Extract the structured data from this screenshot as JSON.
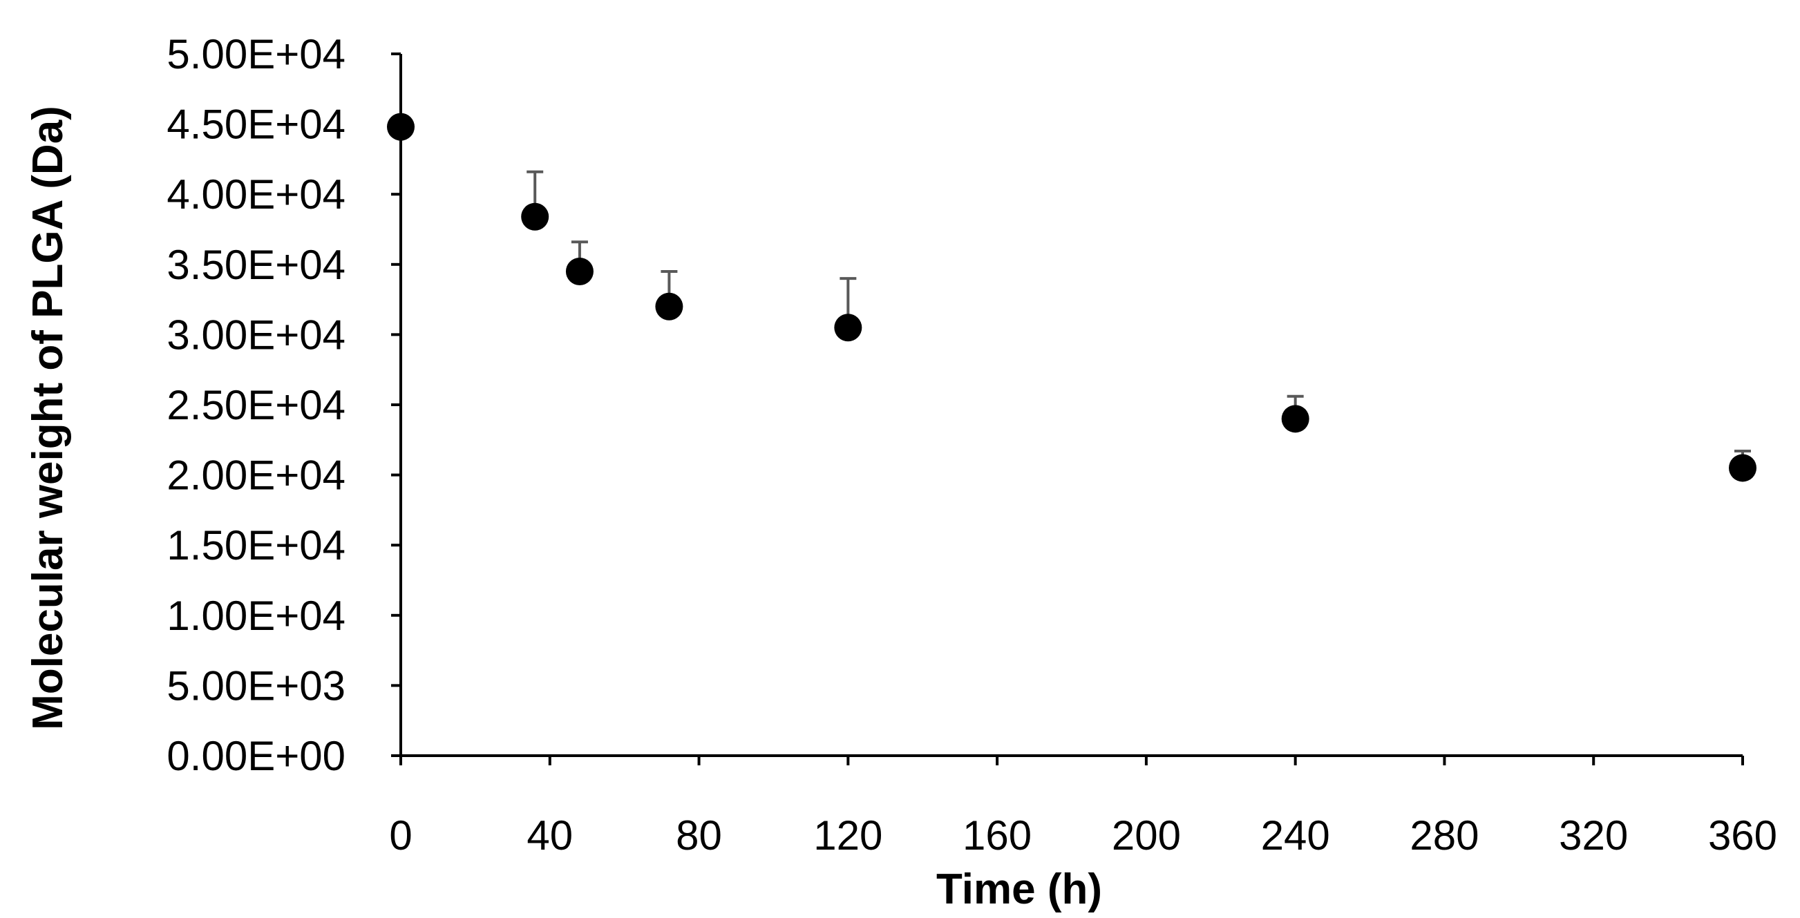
{
  "chart_data": {
    "type": "scatter",
    "title": "",
    "xlabel": "Time (h)",
    "ylabel": "Molecular weight of PLGA (Da)",
    "xlim": [
      0,
      360
    ],
    "ylim": [
      0,
      50000
    ],
    "x_ticks": [
      0,
      40,
      80,
      120,
      160,
      200,
      240,
      280,
      320,
      360
    ],
    "x_tick_labels": [
      "0",
      "40",
      "80",
      "120",
      "160",
      "200",
      "240",
      "280",
      "320",
      "360"
    ],
    "y_ticks": [
      0,
      5000,
      10000,
      15000,
      20000,
      25000,
      30000,
      35000,
      40000,
      45000,
      50000
    ],
    "y_tick_labels": [
      "0.00E+00",
      "5.00E+03",
      "1.00E+04",
      "1.50E+04",
      "2.00E+04",
      "2.50E+04",
      "3.00E+04",
      "3.50E+04",
      "4.00E+04",
      "4.50E+04",
      "5.00E+04"
    ],
    "grid": false,
    "legend": "none",
    "series": [
      {
        "x": [
          0,
          36,
          48,
          72,
          120,
          240,
          360
        ],
        "y": [
          44800,
          38400,
          34500,
          32000,
          30500,
          24000,
          20500
        ],
        "error_upper": [
          0,
          3200,
          2100,
          2500,
          3500,
          1600,
          1200
        ],
        "marker": "circle",
        "color": "#000000",
        "error_color": "#595959"
      }
    ]
  }
}
